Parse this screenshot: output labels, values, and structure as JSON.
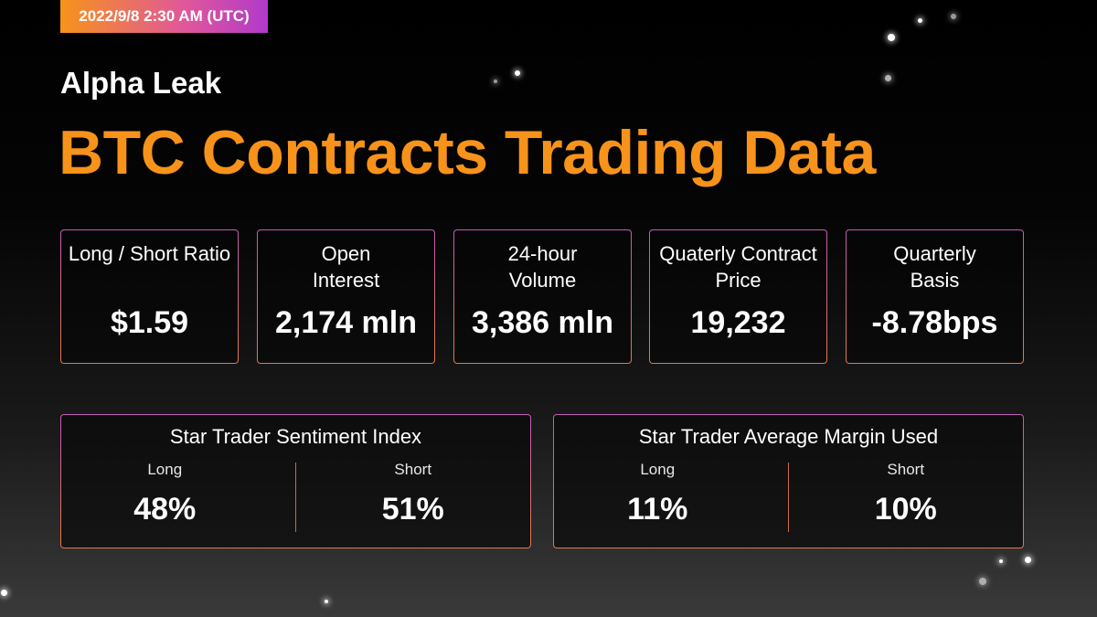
{
  "header": {
    "date": "2022/9/8 2:30 AM (UTC)",
    "subtitle": "Alpha Leak",
    "title": "BTC Contracts Trading Data"
  },
  "stats": [
    {
      "label": "Long / Short Ratio",
      "value": "$1.59"
    },
    {
      "label": "Open Interest",
      "value": "2,174 mln"
    },
    {
      "label": "24-hour Volume",
      "value": "3,386 mln"
    },
    {
      "label": "Quaterly Contract Price",
      "value": "19,232"
    },
    {
      "label": "Quarterly Basis",
      "value": "-8.78bps"
    }
  ],
  "sentiment": {
    "title": "Star Trader Sentiment Index",
    "long_label": "Long",
    "long_value": "48%",
    "short_label": "Short",
    "short_value": "51%"
  },
  "margin": {
    "title": "Star Trader Average Margin Used",
    "long_label": "Long",
    "long_value": "11%",
    "short_label": "Short",
    "short_value": "10%"
  }
}
